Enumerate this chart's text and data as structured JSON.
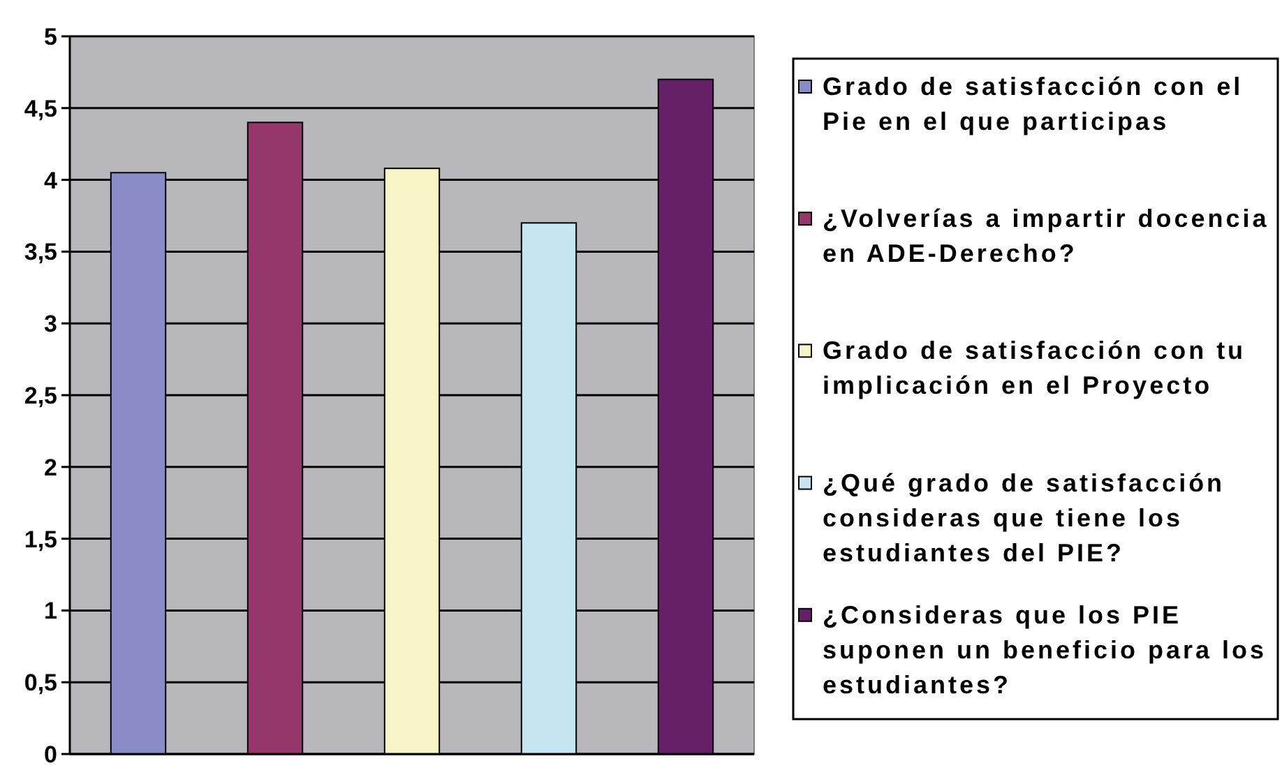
{
  "chart_data": {
    "type": "bar",
    "categories": [
      null
    ],
    "series": [
      {
        "name": "Grado de satisfacción con el Pie en el que participas",
        "color": "#8a8cc8",
        "values": [
          4.05
        ]
      },
      {
        "name": "¿Volverías a impartir docencia en ADE-Derecho?",
        "color": "#95376b",
        "values": [
          4.4
        ]
      },
      {
        "name": "Grado de satisfacción con tu implicación en el Proyecto",
        "color": "#f7f5c6",
        "values": [
          4.08
        ]
      },
      {
        "name": "¿Qué grado de satisfacción consideras que tiene los estudiantes del PIE?",
        "color": "#c5e6f1",
        "values": [
          3.7
        ]
      },
      {
        "name": "¿Consideras que los PIE suponen un beneficio para los estudiantes?",
        "color": "#652068",
        "values": [
          4.7
        ]
      }
    ],
    "ylim": [
      0,
      5
    ],
    "yticks": [
      0,
      {
        "value": 0.5,
        "label": "0,5"
      },
      1,
      {
        "value": 1.5,
        "label": "1,5"
      },
      2,
      {
        "value": 2.5,
        "label": "2,5"
      },
      3,
      {
        "value": 3.5,
        "label": "3,5"
      },
      4,
      {
        "value": 4.5,
        "label": "4,5"
      },
      5
    ],
    "grid": "y",
    "legend": "right"
  }
}
